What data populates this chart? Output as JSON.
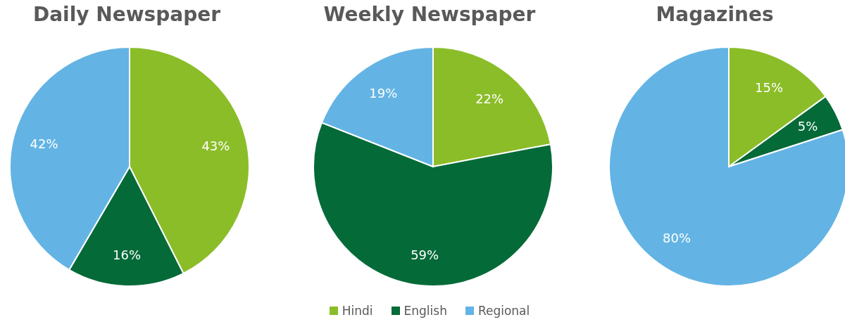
{
  "chart_data": [
    {
      "type": "pie",
      "title": "Daily Newspaper",
      "categories": [
        null,
        null,
        null
      ],
      "values": [
        43,
        16,
        42
      ],
      "colors": [
        "#8bbd28",
        "#046a38",
        "#63b4e4"
      ],
      "value_labels": [
        "43%",
        "16%",
        "42%"
      ]
    },
    {
      "type": "pie",
      "title": "Weekly Newspaper",
      "categories": [
        "Hindi",
        "English",
        "Regional"
      ],
      "values": [
        22,
        59,
        19
      ],
      "colors": [
        "#8bbd28",
        "#046a38",
        "#63b4e4"
      ],
      "value_labels": [
        "22%",
        "59%",
        "19%"
      ],
      "legend": "bottom"
    },
    {
      "type": "pie",
      "title": "Magazines",
      "categories": [
        null,
        null,
        null
      ],
      "values": [
        15,
        5,
        80
      ],
      "colors": [
        "#8bbd28",
        "#046a38",
        "#63b4e4"
      ],
      "value_labels": [
        "15%",
        "5%",
        "80%"
      ]
    }
  ]
}
